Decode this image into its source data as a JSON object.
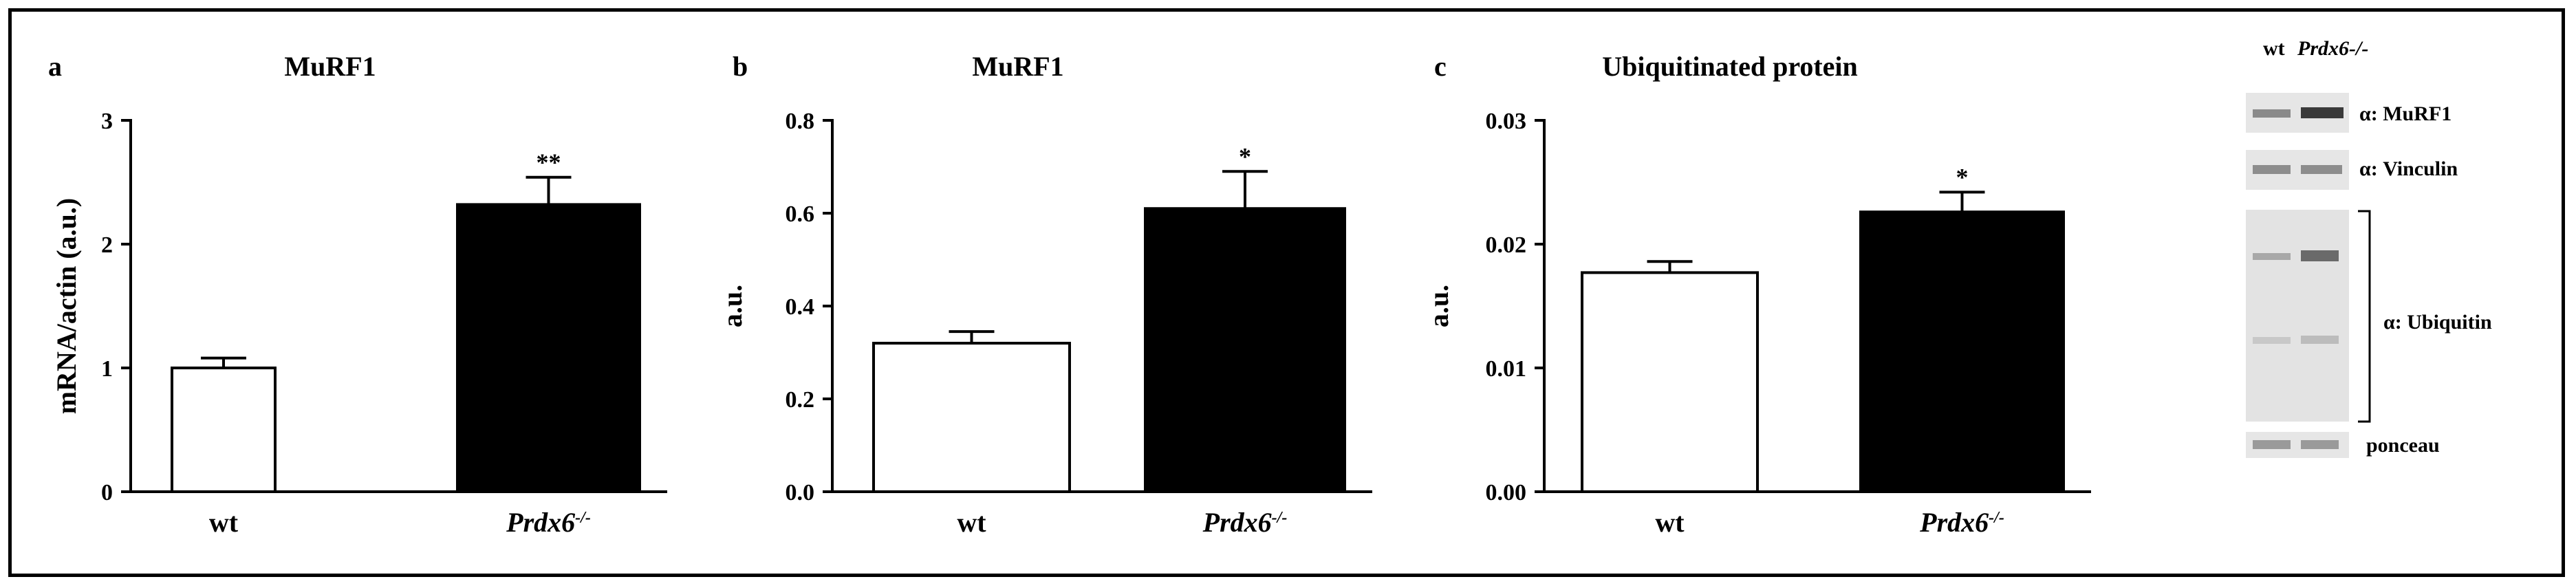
{
  "chart_data": [
    {
      "panel": "a",
      "type": "bar",
      "title": "MuRF1",
      "ylabel": "mRNA/actin (a.u.)",
      "categories": [
        "wt",
        "Prdx6-/-"
      ],
      "values": [
        1.0,
        2.32
      ],
      "errors": [
        0.08,
        0.22
      ],
      "significance": [
        "",
        "**"
      ],
      "ylim": [
        0,
        3
      ],
      "yticks": [
        0,
        1,
        2,
        3
      ],
      "ytick_labels": [
        "0",
        "1",
        "2",
        "3"
      ],
      "bar_colors": [
        "#ffffff",
        "#000000"
      ]
    },
    {
      "panel": "b",
      "type": "bar",
      "title": "MuRF1",
      "ylabel": "a.u.",
      "categories": [
        "wt",
        "Prdx6-/-"
      ],
      "values": [
        0.32,
        0.61
      ],
      "errors": [
        0.025,
        0.08
      ],
      "significance": [
        "",
        "*"
      ],
      "ylim": [
        0,
        0.8
      ],
      "yticks": [
        0,
        0.2,
        0.4,
        0.6,
        0.8
      ],
      "ytick_labels": [
        "0.0",
        "0.2",
        "0.4",
        "0.6",
        "0.8"
      ],
      "bar_colors": [
        "#ffffff",
        "#000000"
      ]
    },
    {
      "panel": "c",
      "type": "bar",
      "title": "Ubiquitinated protein",
      "ylabel": "a.u.",
      "categories": [
        "wt",
        "Prdx6-/-"
      ],
      "values": [
        0.0177,
        0.0226
      ],
      "errors": [
        0.0009,
        0.0016
      ],
      "significance": [
        "",
        "*"
      ],
      "ylim": [
        0,
        0.03
      ],
      "yticks": [
        0,
        0.01,
        0.02,
        0.03
      ],
      "ytick_labels": [
        "0.00",
        "0.01",
        "0.02",
        "0.03"
      ],
      "bar_colors": [
        "#ffffff",
        "#000000"
      ]
    }
  ],
  "blot": {
    "lane_labels": [
      "wt",
      "Prdx6-/-"
    ],
    "rows": [
      "α: MuRF1",
      "α: Vinculin",
      "α: Ubiquitin",
      "ponceau"
    ]
  }
}
